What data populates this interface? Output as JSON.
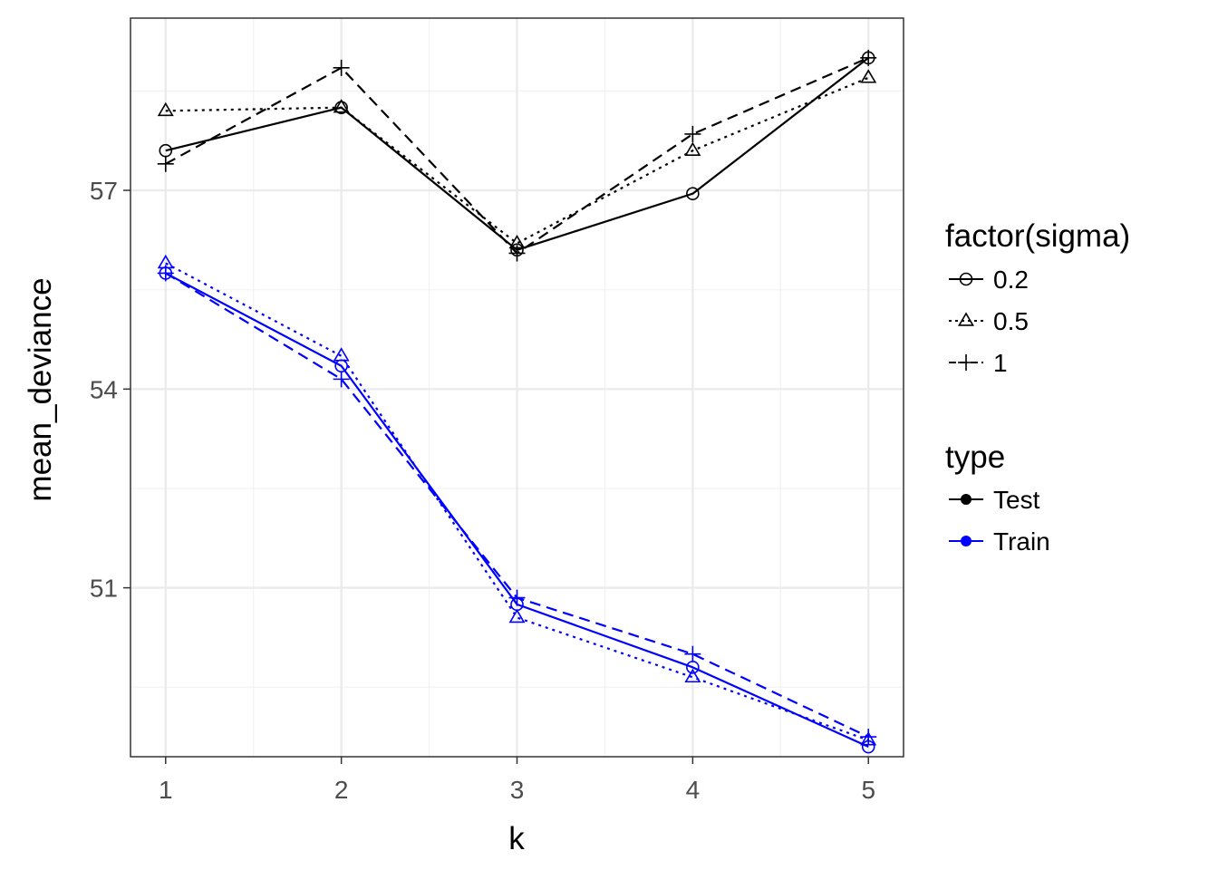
{
  "chart_data": {
    "type": "line",
    "xlabel": "k",
    "ylabel": "mean_deviance",
    "x": [
      1,
      2,
      3,
      4,
      5
    ],
    "x_ticks": [
      "1",
      "2",
      "3",
      "4",
      "5"
    ],
    "y_ticks": [
      51,
      54,
      57
    ],
    "y_tick_labels": [
      "51",
      "54",
      "57"
    ],
    "xlim": [
      0.8,
      5.2
    ],
    "ylim": [
      48.45,
      59.6
    ],
    "grid": true,
    "legend_placement": "right",
    "colors": {
      "Test": "#000000",
      "Train": "#0000ff",
      "grid": "#ebebeb",
      "panel_border": "#333333"
    },
    "legends": {
      "sigma": {
        "title": "factor(sigma)",
        "entries": [
          {
            "label": "0.2",
            "shape": "circle",
            "linetype": "solid"
          },
          {
            "label": "0.5",
            "shape": "triangle",
            "linetype": "dotted"
          },
          {
            "label": "1",
            "shape": "plus",
            "linetype": "dashed"
          }
        ]
      },
      "type": {
        "title": "type",
        "entries": [
          {
            "label": "Test",
            "color": "#000000"
          },
          {
            "label": "Train",
            "color": "#0000ff"
          }
        ]
      }
    },
    "series": [
      {
        "type": "Test",
        "sigma": "0.2",
        "values": [
          57.6,
          58.25,
          56.1,
          56.95,
          59.0
        ]
      },
      {
        "type": "Test",
        "sigma": "0.5",
        "values": [
          58.2,
          58.25,
          56.2,
          57.6,
          58.7
        ]
      },
      {
        "type": "Test",
        "sigma": "1",
        "values": [
          57.4,
          58.85,
          56.05,
          57.85,
          59.0
        ]
      },
      {
        "type": "Train",
        "sigma": "0.2",
        "values": [
          55.75,
          54.35,
          50.75,
          49.8,
          48.6
        ]
      },
      {
        "type": "Train",
        "sigma": "0.5",
        "values": [
          55.9,
          54.5,
          50.55,
          49.65,
          48.7
        ]
      },
      {
        "type": "Train",
        "sigma": "1",
        "values": [
          55.75,
          54.15,
          50.85,
          50.0,
          48.75
        ]
      }
    ]
  }
}
